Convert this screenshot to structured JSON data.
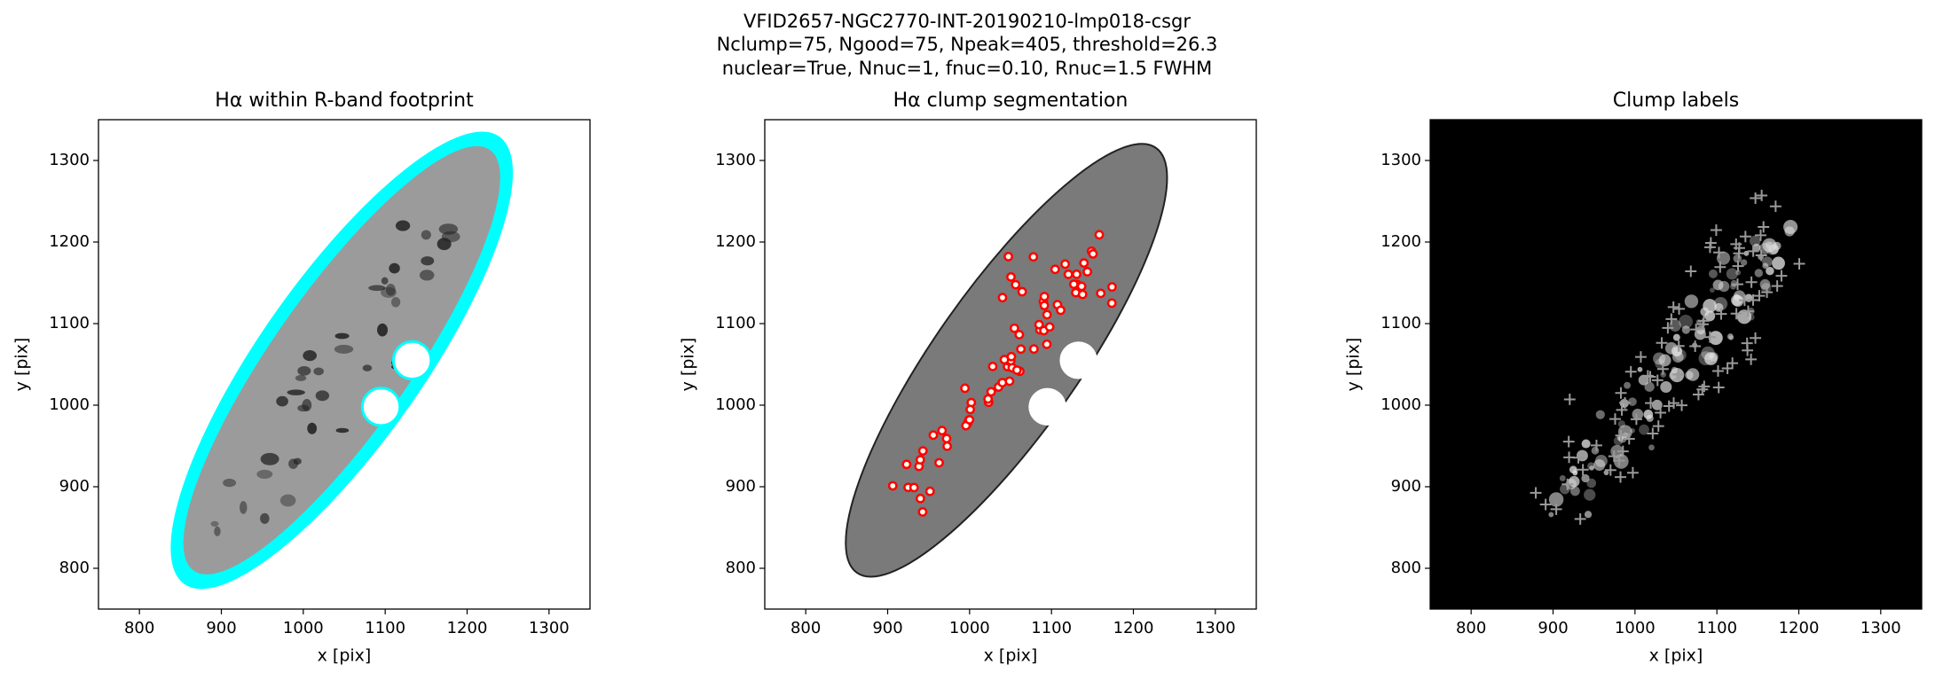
{
  "figure_title": [
    "VFID2657-NGC2770-INT-20190210-lmp018-csgr",
    "Nclump=75, Ngood=75, Npeak=405, threshold=26.3",
    "nuclear=True, Nnuc=1, fnuc=0.10, Rnuc=1.5 FWHM"
  ],
  "chart_data": [
    {
      "type": "image",
      "title": "Hα within R-band footprint",
      "xlabel": "x [pix]",
      "ylabel": "y [pix]",
      "xlim": [
        750,
        1350
      ],
      "ylim": [
        750,
        1350
      ],
      "xticks": [
        800,
        900,
        1000,
        1100,
        1200,
        1300
      ],
      "yticks": [
        800,
        900,
        1000,
        1100,
        1200,
        1300
      ]
    },
    {
      "type": "image",
      "title": "Hα clump segmentation",
      "xlabel": "x [pix]",
      "ylabel": "y [pix]",
      "xlim": [
        750,
        1350
      ],
      "ylim": [
        750,
        1350
      ],
      "xticks": [
        800,
        900,
        1000,
        1100,
        1200,
        1300
      ],
      "yticks": [
        800,
        900,
        1000,
        1100,
        1200,
        1300
      ]
    },
    {
      "type": "image",
      "title": "Clump labels",
      "xlabel": "x [pix]",
      "ylabel": "y [pix]",
      "xlim": [
        750,
        1350
      ],
      "ylim": [
        750,
        1350
      ],
      "xticks": [
        800,
        900,
        1000,
        1100,
        1200,
        1300
      ],
      "yticks": [
        800,
        900,
        1000,
        1100,
        1200,
        1300
      ]
    }
  ]
}
